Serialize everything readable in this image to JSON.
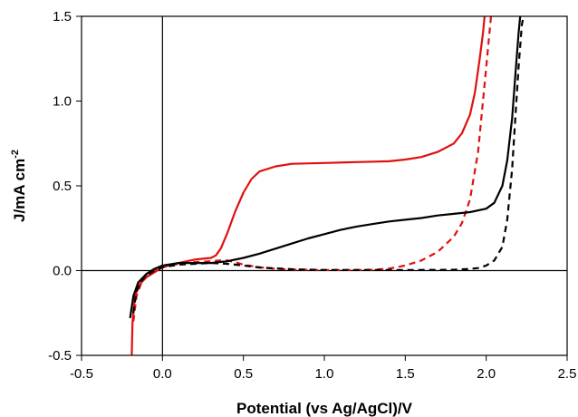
{
  "chart_data": {
    "type": "line",
    "xlabel": "Potential (vs Ag/AgCl)/V",
    "ylabel_main": "J/mA cm",
    "ylabel_sup": "-2",
    "xlim": [
      -0.5,
      2.5
    ],
    "ylim": [
      -0.5,
      1.5
    ],
    "xticks": [
      "-0.5",
      "0.0",
      "0.5",
      "1.0",
      "1.5",
      "2.0",
      "2.5"
    ],
    "yticks": [
      "-0.5",
      "0.0",
      "0.5",
      "1.0",
      "1.5"
    ],
    "grid": false,
    "legend": "none",
    "series": [
      {
        "color": "#e01010",
        "dash": "solid",
        "points": [
          [
            -0.19,
            -0.5
          ],
          [
            -0.185,
            -0.3
          ],
          [
            -0.17,
            -0.15
          ],
          [
            -0.14,
            -0.08
          ],
          [
            -0.1,
            -0.04
          ],
          [
            -0.05,
            -0.01
          ],
          [
            0.0,
            0.02
          ],
          [
            0.05,
            0.035
          ],
          [
            0.1,
            0.045
          ],
          [
            0.15,
            0.055
          ],
          [
            0.2,
            0.065
          ],
          [
            0.25,
            0.07
          ],
          [
            0.3,
            0.075
          ],
          [
            0.33,
            0.09
          ],
          [
            0.36,
            0.13
          ],
          [
            0.4,
            0.22
          ],
          [
            0.45,
            0.35
          ],
          [
            0.5,
            0.46
          ],
          [
            0.55,
            0.54
          ],
          [
            0.6,
            0.585
          ],
          [
            0.7,
            0.615
          ],
          [
            0.8,
            0.63
          ],
          [
            1.0,
            0.635
          ],
          [
            1.2,
            0.64
          ],
          [
            1.4,
            0.645
          ],
          [
            1.5,
            0.655
          ],
          [
            1.6,
            0.67
          ],
          [
            1.7,
            0.7
          ],
          [
            1.8,
            0.75
          ],
          [
            1.85,
            0.81
          ],
          [
            1.9,
            0.92
          ],
          [
            1.93,
            1.05
          ],
          [
            1.96,
            1.25
          ],
          [
            1.98,
            1.4
          ],
          [
            1.99,
            1.5
          ]
        ]
      },
      {
        "color": "#e01010",
        "dash": "dashed",
        "points": [
          [
            -0.18,
            -0.3
          ],
          [
            -0.16,
            -0.15
          ],
          [
            -0.13,
            -0.07
          ],
          [
            -0.1,
            -0.03
          ],
          [
            -0.05,
            0.0
          ],
          [
            0.0,
            0.02
          ],
          [
            0.05,
            0.03
          ],
          [
            0.1,
            0.04
          ],
          [
            0.2,
            0.05
          ],
          [
            0.3,
            0.055
          ],
          [
            0.35,
            0.06
          ],
          [
            0.4,
            0.06
          ],
          [
            0.45,
            0.05
          ],
          [
            0.5,
            0.035
          ],
          [
            0.6,
            0.02
          ],
          [
            0.7,
            0.01
          ],
          [
            0.8,
            0.006
          ],
          [
            1.0,
            0.003
          ],
          [
            1.2,
            0.003
          ],
          [
            1.3,
            0.005
          ],
          [
            1.4,
            0.012
          ],
          [
            1.5,
            0.03
          ],
          [
            1.6,
            0.06
          ],
          [
            1.7,
            0.11
          ],
          [
            1.8,
            0.2
          ],
          [
            1.85,
            0.28
          ],
          [
            1.9,
            0.42
          ],
          [
            1.95,
            0.7
          ],
          [
            1.98,
            1.0
          ],
          [
            2.0,
            1.2
          ],
          [
            2.02,
            1.4
          ],
          [
            2.03,
            1.5
          ]
        ]
      },
      {
        "color": "#000000",
        "dash": "solid",
        "points": [
          [
            -0.2,
            -0.28
          ],
          [
            -0.18,
            -0.15
          ],
          [
            -0.15,
            -0.07
          ],
          [
            -0.1,
            -0.02
          ],
          [
            -0.05,
            0.01
          ],
          [
            0.0,
            0.03
          ],
          [
            0.1,
            0.045
          ],
          [
            0.2,
            0.045
          ],
          [
            0.3,
            0.045
          ],
          [
            0.4,
            0.055
          ],
          [
            0.5,
            0.075
          ],
          [
            0.6,
            0.1
          ],
          [
            0.7,
            0.13
          ],
          [
            0.8,
            0.16
          ],
          [
            0.9,
            0.19
          ],
          [
            1.0,
            0.215
          ],
          [
            1.1,
            0.24
          ],
          [
            1.2,
            0.26
          ],
          [
            1.3,
            0.275
          ],
          [
            1.4,
            0.29
          ],
          [
            1.5,
            0.3
          ],
          [
            1.6,
            0.31
          ],
          [
            1.7,
            0.325
          ],
          [
            1.8,
            0.335
          ],
          [
            1.9,
            0.345
          ],
          [
            2.0,
            0.365
          ],
          [
            2.05,
            0.4
          ],
          [
            2.1,
            0.5
          ],
          [
            2.13,
            0.65
          ],
          [
            2.16,
            0.9
          ],
          [
            2.18,
            1.15
          ],
          [
            2.2,
            1.4
          ],
          [
            2.21,
            1.5
          ]
        ]
      },
      {
        "color": "#000000",
        "dash": "dashed",
        "points": [
          [
            -0.18,
            -0.25
          ],
          [
            -0.16,
            -0.12
          ],
          [
            -0.13,
            -0.06
          ],
          [
            -0.1,
            -0.03
          ],
          [
            -0.05,
            0.0
          ],
          [
            0.0,
            0.02
          ],
          [
            0.1,
            0.035
          ],
          [
            0.2,
            0.04
          ],
          [
            0.3,
            0.045
          ],
          [
            0.4,
            0.04
          ],
          [
            0.5,
            0.03
          ],
          [
            0.6,
            0.018
          ],
          [
            0.8,
            0.008
          ],
          [
            1.0,
            0.004
          ],
          [
            1.5,
            0.003
          ],
          [
            1.8,
            0.005
          ],
          [
            1.9,
            0.01
          ],
          [
            1.95,
            0.015
          ],
          [
            2.0,
            0.03
          ],
          [
            2.05,
            0.06
          ],
          [
            2.1,
            0.14
          ],
          [
            2.13,
            0.3
          ],
          [
            2.16,
            0.6
          ],
          [
            2.18,
            0.9
          ],
          [
            2.2,
            1.2
          ],
          [
            2.22,
            1.45
          ],
          [
            2.23,
            1.5
          ]
        ]
      }
    ]
  }
}
